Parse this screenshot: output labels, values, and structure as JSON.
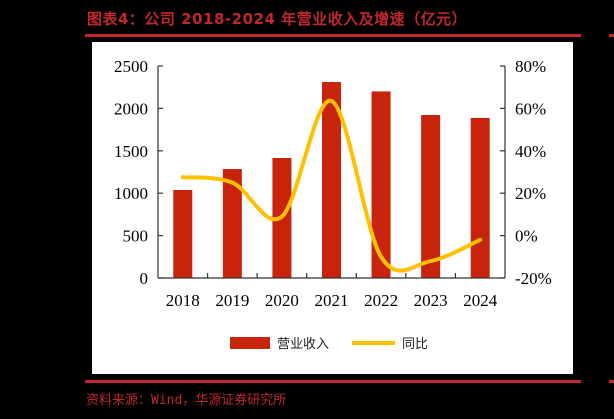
{
  "header": {
    "title": "图表4：公司 2018-2024 年营业收入及增速（亿元）"
  },
  "footer": {
    "source": "资料来源：Wind，华源证券研究所"
  },
  "colors": {
    "accent_red": "#c0282e",
    "bar": "#c8240c",
    "line": "#ffc000"
  },
  "chart_data": {
    "type": "bar",
    "title": "公司 2018-2024 年营业收入及增速（亿元）",
    "categories": [
      "2018",
      "2019",
      "2020",
      "2021",
      "2022",
      "2023",
      "2024"
    ],
    "series": [
      {
        "name": "营业收入",
        "type": "bar",
        "axis": "left",
        "values": [
          1038,
          1285,
          1415,
          2311,
          2200,
          1922,
          1887
        ]
      },
      {
        "name": "同比",
        "type": "line",
        "axis": "right",
        "smooth": true,
        "values": [
          27.6,
          25.0,
          9.0,
          63.5,
          -10.0,
          -12.0,
          -2.0
        ]
      }
    ],
    "xlabel": "",
    "ylabel": "",
    "ylim": [
      0,
      2500
    ],
    "yticks": [
      "0",
      "500",
      "1000",
      "1500",
      "2000",
      "2500"
    ],
    "y2lim": [
      -20,
      80
    ],
    "y2ticks": [
      "-20%",
      "0%",
      "20%",
      "40%",
      "60%",
      "80%"
    ],
    "grid": false,
    "legend": {
      "position": "bottom",
      "entries": [
        "营业收入",
        "同比"
      ]
    }
  }
}
